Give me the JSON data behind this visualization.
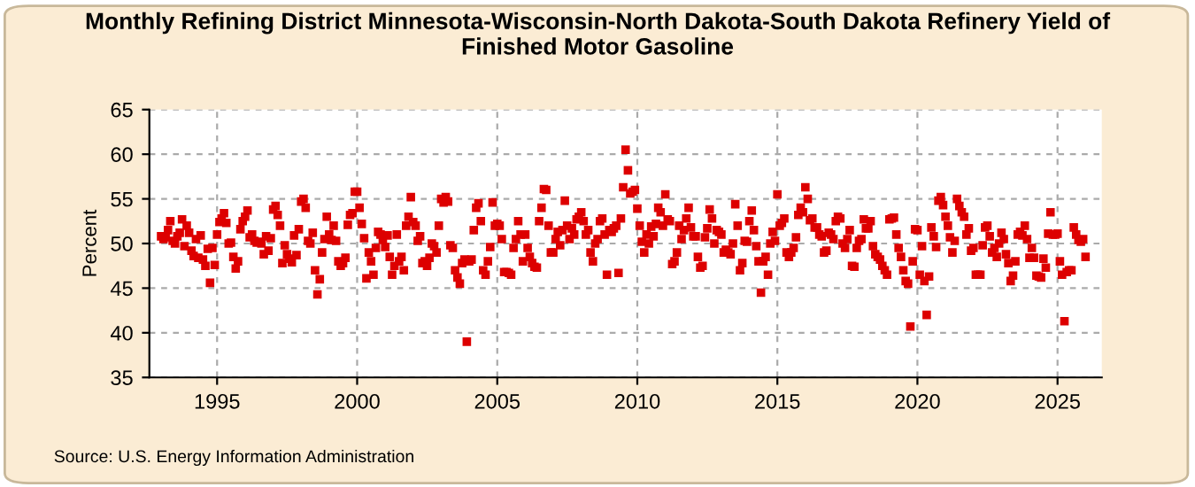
{
  "chart_data": {
    "type": "scatter",
    "title": "Monthly Refining District Minnesota-Wisconsin-North Dakota-South Dakota Refinery Yield of\nFinished Motor Gasoline",
    "ylabel": "Percent",
    "annotations": [
      "Source: U.S. Energy Information Administration"
    ],
    "marker": "square",
    "grid": true,
    "xlim": [
      "1992-08",
      "2026-08"
    ],
    "xticks": [
      {
        "value": "1995-01",
        "label": "1995"
      },
      {
        "value": "2000-01",
        "label": "2000"
      },
      {
        "value": "2005-01",
        "label": "2005"
      },
      {
        "value": "2010-01",
        "label": "2010"
      },
      {
        "value": "2015-01",
        "label": "2015"
      },
      {
        "value": "2020-01",
        "label": "2020"
      },
      {
        "value": "2025-01",
        "label": "2025"
      }
    ],
    "ylim": [
      35,
      65
    ],
    "yticks": [
      35,
      40,
      45,
      50,
      55,
      60,
      65
    ],
    "x": [
      "1993-01",
      "1993-02",
      "1993-03",
      "1993-04",
      "1993-05",
      "1993-06",
      "1993-07",
      "1993-08",
      "1993-09",
      "1993-10",
      "1993-11",
      "1993-12",
      "1994-01",
      "1994-02",
      "1994-03",
      "1994-04",
      "1994-05",
      "1994-06",
      "1994-07",
      "1994-08",
      "1994-09",
      "1994-10",
      "1994-11",
      "1994-12",
      "1995-01",
      "1995-02",
      "1995-03",
      "1995-04",
      "1995-05",
      "1995-06",
      "1995-07",
      "1995-08",
      "1995-09",
      "1995-10",
      "1995-11",
      "1995-12",
      "1996-01",
      "1996-02",
      "1996-03",
      "1996-04",
      "1996-05",
      "1996-06",
      "1996-07",
      "1996-08",
      "1996-09",
      "1996-10",
      "1996-11",
      "1996-12",
      "1997-01",
      "1997-02",
      "1997-03",
      "1997-04",
      "1997-05",
      "1997-06",
      "1997-07",
      "1997-08",
      "1997-09",
      "1997-10",
      "1997-11",
      "1997-12",
      "1998-01",
      "1998-02",
      "1998-03",
      "1998-04",
      "1998-05",
      "1998-06",
      "1998-07",
      "1998-08",
      "1998-09",
      "1998-10",
      "1998-11",
      "1998-12",
      "1999-01",
      "1999-02",
      "1999-03",
      "1999-04",
      "1999-05",
      "1999-06",
      "1999-07",
      "1999-08",
      "1999-09",
      "1999-10",
      "1999-11",
      "1999-12",
      "2000-01",
      "2000-02",
      "2000-03",
      "2000-04",
      "2000-05",
      "2000-06",
      "2000-07",
      "2000-08",
      "2000-09",
      "2000-10",
      "2000-11",
      "2000-12",
      "2001-01",
      "2001-02",
      "2001-03",
      "2001-04",
      "2001-05",
      "2001-06",
      "2001-07",
      "2001-08",
      "2001-09",
      "2001-10",
      "2001-11",
      "2001-12",
      "2002-01",
      "2002-02",
      "2002-03",
      "2002-04",
      "2002-05",
      "2002-06",
      "2002-07",
      "2002-08",
      "2002-09",
      "2002-10",
      "2002-11",
      "2002-12",
      "2003-01",
      "2003-02",
      "2003-03",
      "2003-04",
      "2003-05",
      "2003-06",
      "2003-07",
      "2003-08",
      "2003-09",
      "2003-10",
      "2003-11",
      "2003-12",
      "2004-01",
      "2004-02",
      "2004-03",
      "2004-04",
      "2004-05",
      "2004-06",
      "2004-07",
      "2004-08",
      "2004-09",
      "2004-10",
      "2004-11",
      "2004-12",
      "2005-01",
      "2005-02",
      "2005-03",
      "2005-04",
      "2005-05",
      "2005-06",
      "2005-07",
      "2005-08",
      "2005-09",
      "2005-10",
      "2005-11",
      "2005-12",
      "2006-01",
      "2006-02",
      "2006-03",
      "2006-04",
      "2006-05",
      "2006-06",
      "2006-07",
      "2006-08",
      "2006-09",
      "2006-10",
      "2006-11",
      "2006-12",
      "2007-01",
      "2007-02",
      "2007-03",
      "2007-04",
      "2007-05",
      "2007-06",
      "2007-07",
      "2007-08",
      "2007-09",
      "2007-10",
      "2007-11",
      "2007-12",
      "2008-01",
      "2008-02",
      "2008-03",
      "2008-04",
      "2008-05",
      "2008-06",
      "2008-07",
      "2008-08",
      "2008-09",
      "2008-10",
      "2008-11",
      "2008-12",
      "2009-01",
      "2009-02",
      "2009-03",
      "2009-04",
      "2009-05",
      "2009-06",
      "2009-07",
      "2009-08",
      "2009-09",
      "2009-10",
      "2009-11",
      "2009-12",
      "2010-01",
      "2010-02",
      "2010-03",
      "2010-04",
      "2010-05",
      "2010-06",
      "2010-07",
      "2010-08",
      "2010-09",
      "2010-10",
      "2010-11",
      "2010-12",
      "2011-01",
      "2011-02",
      "2011-03",
      "2011-04",
      "2011-05",
      "2011-06",
      "2011-07",
      "2011-08",
      "2011-09",
      "2011-10",
      "2011-11",
      "2011-12",
      "2012-01",
      "2012-02",
      "2012-03",
      "2012-04",
      "2012-05",
      "2012-06",
      "2012-07",
      "2012-08",
      "2012-09",
      "2012-10",
      "2012-11",
      "2012-12",
      "2013-01",
      "2013-02",
      "2013-03",
      "2013-04",
      "2013-05",
      "2013-06",
      "2013-07",
      "2013-08",
      "2013-09",
      "2013-10",
      "2013-11",
      "2013-12",
      "2014-01",
      "2014-02",
      "2014-03",
      "2014-04",
      "2014-05",
      "2014-06",
      "2014-07",
      "2014-08",
      "2014-09",
      "2014-10",
      "2014-11",
      "2014-12",
      "2015-01",
      "2015-02",
      "2015-03",
      "2015-04",
      "2015-05",
      "2015-06",
      "2015-07",
      "2015-08",
      "2015-09",
      "2015-10",
      "2015-11",
      "2015-12",
      "2016-01",
      "2016-02",
      "2016-03",
      "2016-04",
      "2016-05",
      "2016-06",
      "2016-07",
      "2016-08",
      "2016-09",
      "2016-10",
      "2016-11",
      "2016-12",
      "2017-01",
      "2017-02",
      "2017-03",
      "2017-04",
      "2017-05",
      "2017-06",
      "2017-07",
      "2017-08",
      "2017-09",
      "2017-10",
      "2017-11",
      "2017-12",
      "2018-01",
      "2018-02",
      "2018-03",
      "2018-04",
      "2018-05",
      "2018-06",
      "2018-07",
      "2018-08",
      "2018-09",
      "2018-10",
      "2018-11",
      "2018-12",
      "2019-01",
      "2019-02",
      "2019-03",
      "2019-04",
      "2019-05",
      "2019-06",
      "2019-07",
      "2019-08",
      "2019-09",
      "2019-10",
      "2019-11",
      "2019-12",
      "2020-01",
      "2020-02",
      "2020-03",
      "2020-04",
      "2020-05",
      "2020-06",
      "2020-07",
      "2020-08",
      "2020-09",
      "2020-10",
      "2020-11",
      "2020-12",
      "2021-01",
      "2021-02",
      "2021-03",
      "2021-04",
      "2021-05",
      "2021-06",
      "2021-07",
      "2021-08",
      "2021-09",
      "2021-10",
      "2021-11",
      "2021-12",
      "2022-01",
      "2022-02",
      "2022-03",
      "2022-04",
      "2022-05",
      "2022-06",
      "2022-07",
      "2022-08",
      "2022-09",
      "2022-10",
      "2022-11",
      "2022-12",
      "2023-01",
      "2023-02",
      "2023-03",
      "2023-04",
      "2023-05",
      "2023-06",
      "2023-07",
      "2023-08",
      "2023-09",
      "2023-10",
      "2023-11",
      "2023-12",
      "2024-01",
      "2024-02",
      "2024-03",
      "2024-04",
      "2024-05",
      "2024-06",
      "2024-07",
      "2024-08",
      "2024-09",
      "2024-10",
      "2024-11",
      "2024-12",
      "2025-01",
      "2025-02",
      "2025-03",
      "2025-04",
      "2025-05",
      "2025-06",
      "2025-07",
      "2025-08",
      "2025-09",
      "2025-10",
      "2025-11",
      "2025-12",
      "2026-01"
    ],
    "series": [
      {
        "color": "#dd0000",
        "values": [
          50.8,
          50.5,
          50.7,
          51.5,
          52.5,
          50.3,
          50.0,
          50.8,
          51.2,
          52.7,
          49.7,
          52.0,
          51.2,
          49.2,
          48.6,
          50.5,
          48.4,
          50.9,
          48.2,
          47.5,
          49.4,
          45.6,
          49.5,
          47.6,
          51.0,
          52.4,
          52.8,
          53.4,
          52.3,
          50.0,
          50.1,
          48.5,
          47.2,
          48.0,
          51.6,
          52.5,
          53.0,
          53.7,
          50.7,
          51.0,
          50.3,
          50.1,
          50.2,
          50.0,
          48.8,
          50.8,
          49.2,
          50.6,
          53.8,
          54.2,
          53.2,
          52.0,
          47.8,
          49.8,
          48.8,
          48.3,
          47.9,
          50.9,
          48.7,
          51.6,
          54.7,
          55.0,
          54.0,
          50.3,
          50.0,
          51.2,
          47.0,
          44.3,
          46.0,
          49.0,
          50.5,
          53.0,
          51.0,
          50.4,
          52.0,
          50.3,
          48.0,
          47.5,
          47.8,
          48.4,
          52.1,
          53.2,
          53.4,
          55.8,
          55.8,
          54.0,
          52.2,
          50.6,
          46.1,
          49.0,
          48.0,
          46.5,
          49.5,
          51.3,
          51.0,
          50.4,
          49.6,
          50.9,
          48.5,
          46.5,
          47.5,
          51.0,
          48.0,
          48.5,
          47.0,
          52.0,
          53.0,
          55.2,
          52.4,
          52.0,
          50.3,
          50.8,
          47.8,
          48.0,
          47.5,
          48.4,
          50.0,
          49.7,
          49.0,
          52.0,
          55.0,
          54.6,
          55.2,
          54.7,
          49.8,
          49.5,
          47.0,
          46.2,
          45.5,
          47.8,
          48.2,
          39.0,
          48.0,
          48.2,
          51.5,
          54.0,
          54.5,
          52.5,
          47.0,
          46.5,
          48.0,
          49.6,
          54.6,
          52.0,
          52.2,
          52.0,
          50.5,
          46.8,
          46.8,
          46.7,
          46.5,
          49.5,
          50.5,
          52.5,
          51.0,
          48.0,
          51.0,
          49.5,
          48.5,
          47.8,
          47.4,
          47.3,
          52.5,
          54.0,
          56.1,
          56.0,
          52.0,
          49.0,
          49.0,
          50.5,
          51.3,
          49.8,
          51.5,
          54.8,
          52.0,
          50.5,
          51.7,
          51.0,
          52.7,
          53.0,
          53.5,
          52.5,
          51.0,
          51.5,
          49.0,
          48.0,
          50.0,
          50.5,
          52.5,
          52.8,
          51.0,
          46.5,
          51.5,
          51.3,
          51.7,
          52.0,
          46.7,
          52.8,
          56.3,
          60.5,
          58.2,
          55.6,
          55.8,
          56.0,
          53.9,
          52.0,
          50.2,
          49.0,
          51.0,
          50.0,
          51.9,
          50.8,
          52.2,
          54.0,
          53.5,
          52.0,
          55.5,
          52.7,
          52.5,
          47.7,
          48.0,
          49.0,
          52.0,
          50.5,
          51.5,
          52.8,
          54.0,
          51.8,
          50.8,
          50.8,
          48.5,
          47.3,
          47.5,
          50.7,
          51.7,
          53.8,
          52.8,
          50.0,
          51.5,
          51.3,
          51.0,
          49.0,
          49.3,
          49.0,
          48.8,
          50.0,
          54.4,
          52.0,
          47.0,
          47.8,
          50.3,
          50.2,
          52.5,
          53.7,
          51.5,
          49.7,
          48.0,
          44.5,
          48.0,
          48.5,
          46.5,
          50.0,
          51.3,
          50.3,
          55.5,
          52.0,
          52.3,
          52.8,
          49.0,
          48.5,
          49.0,
          49.5,
          50.7,
          53.2,
          54.0,
          53.5,
          56.3,
          55.0,
          52.6,
          52.8,
          51.8,
          51.8,
          51.0,
          50.8,
          49.0,
          49.2,
          51.2,
          51.0,
          50.5,
          52.5,
          53.0,
          52.8,
          50.0,
          49.5,
          50.5,
          51.5,
          47.5,
          47.4,
          49.5,
          50.3,
          50.5,
          52.7,
          51.7,
          51.7,
          52.5,
          49.7,
          48.8,
          48.5,
          48.2,
          47.5,
          47.0,
          46.5,
          52.7,
          52.8,
          52.9,
          51.0,
          49.5,
          48.5,
          47.0,
          45.8,
          45.5,
          40.7,
          48.0,
          51.6,
          51.5,
          46.5,
          49.7,
          45.8,
          42.0,
          46.3,
          51.8,
          50.8,
          49.6,
          54.8,
          55.2,
          54.3,
          53.0,
          52.0,
          50.7,
          49.0,
          50.3,
          55.0,
          54.2,
          53.5,
          53.0,
          51.0,
          51.7,
          49.2,
          49.5,
          46.5,
          46.5,
          46.5,
          49.8,
          51.8,
          52.0,
          50.8,
          49.0,
          49.5,
          48.5,
          50.0,
          51.2,
          50.5,
          48.8,
          47.8,
          45.8,
          46.4,
          48.0,
          51.0,
          51.3,
          50.9,
          52.0,
          50.5,
          48.4,
          49.5,
          48.4,
          46.4,
          46.3,
          46.2,
          48.3,
          47.3,
          51.1,
          53.5,
          51.0,
          51.0,
          51.1,
          48.0,
          46.5,
          41.3,
          46.8,
          47.0,
          47.0,
          51.8,
          51.0,
          50.4,
          50.2,
          50.5,
          48.5
        ]
      }
    ]
  }
}
